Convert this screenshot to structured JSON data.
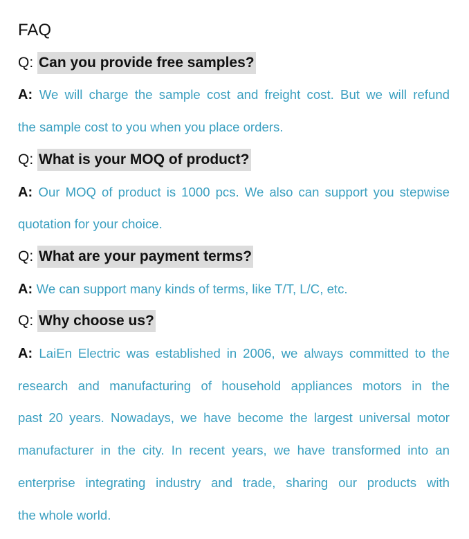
{
  "title": "FAQ",
  "q_prefix": "Q: ",
  "a_prefix": "A: ",
  "colors": {
    "answer": "#3a9fc0",
    "highlight": "#dcdcdc"
  },
  "items": [
    {
      "question": "Can you provide free samples?",
      "answer_lines": [
        "We will charge the sample cost and freight cost. But we will refund",
        "the sample cost to you when you place orders."
      ]
    },
    {
      "question": "What is your MOQ of product?",
      "answer_lines": [
        "Our MOQ of product is 1000 pcs. We also can support you stepwise",
        "quotation for your choice."
      ]
    },
    {
      "question": "What are your payment terms?",
      "answer_lines": [
        "We can support many kinds of terms, like T/T, L/C, etc."
      ]
    },
    {
      "question": "Why choose us?",
      "answer_lines": [
        "LaiEn Electric was established in 2006, we always committed to the",
        "research and manufacturing of household appliances motors in the",
        "past 20 years. Nowadays, we have become the largest universal motor",
        "manufacturer in the city. In recent years, we have transformed into an",
        "enterprise integrating industry and trade, sharing our products with",
        "the whole world."
      ]
    }
  ]
}
